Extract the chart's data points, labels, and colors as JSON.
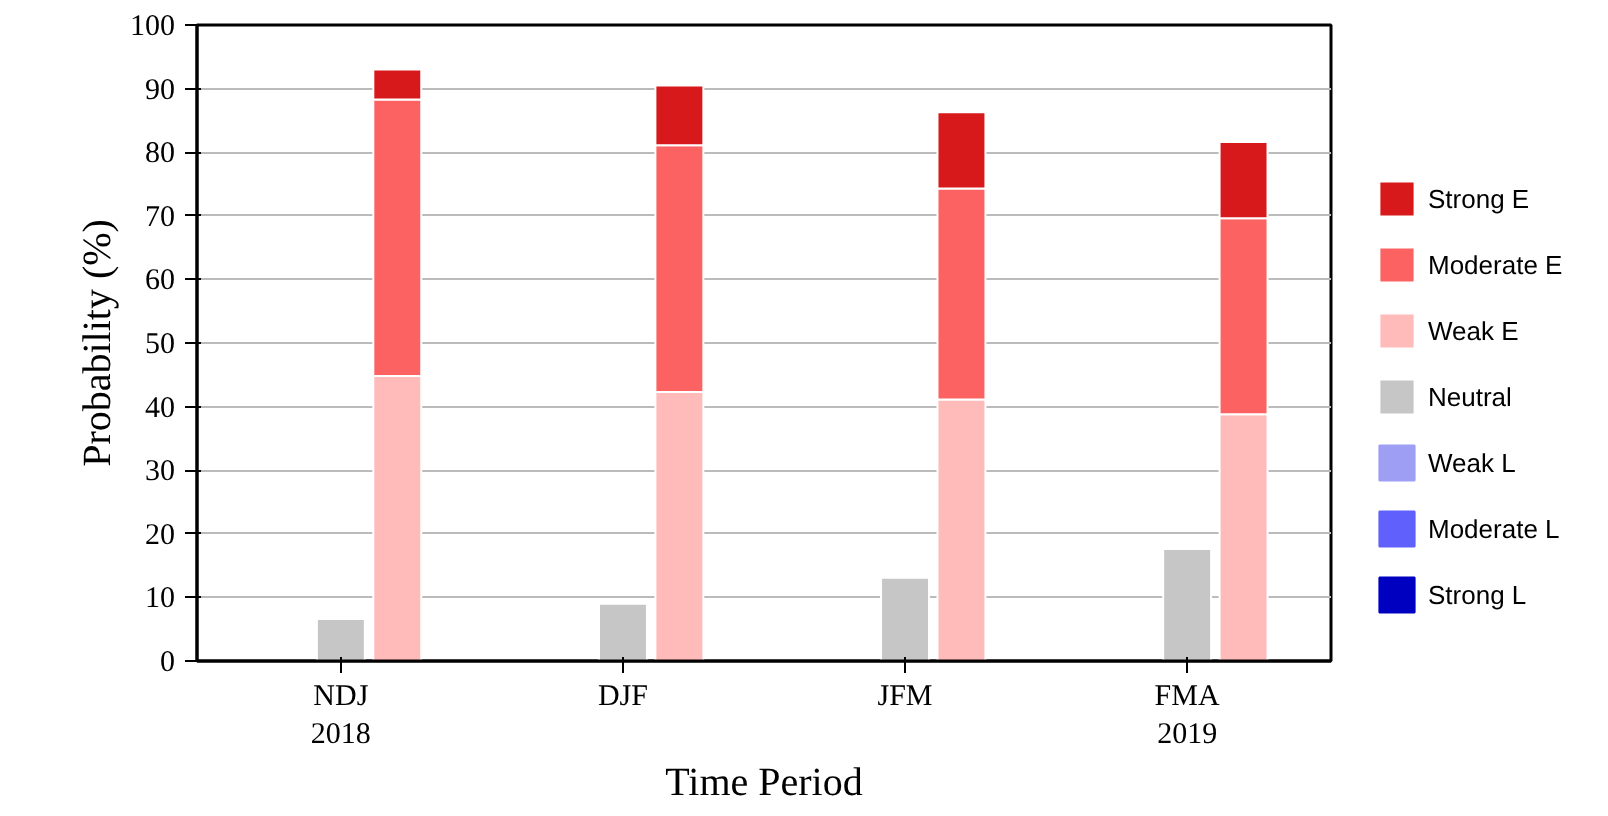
{
  "chart_data": {
    "type": "bar",
    "stacked": true,
    "xlabel": "Time Period",
    "ylabel": "Probability (%)",
    "categories": [
      null,
      "NDJ\n2018",
      null,
      null,
      "DJF",
      null,
      null,
      "JFM",
      null,
      null,
      "FMA\n2019",
      null
    ],
    "ylim": [
      0,
      100
    ],
    "yticks": [
      0,
      10,
      20,
      30,
      40,
      50,
      60,
      70,
      80,
      90,
      100
    ],
    "grid": "y",
    "legend": "right",
    "series": [
      {
        "name": "Strong L",
        "color": "#0000c0",
        "values": [
          0,
          null,
          null,
          0,
          null,
          null,
          0,
          null,
          null,
          0,
          null,
          null
        ]
      },
      {
        "name": "Moderate L",
        "color": "#6060fc",
        "values": [
          0,
          null,
          null,
          0,
          null,
          null,
          0,
          null,
          null,
          0,
          null,
          null
        ]
      },
      {
        "name": "Weak L",
        "color": "#9e9ef5",
        "values": [
          0,
          null,
          null,
          0,
          null,
          null,
          0,
          null,
          null,
          0,
          null,
          null
        ]
      },
      {
        "name": "Neutral",
        "color": "#c6c6c6",
        "values": [
          null,
          6.6,
          null,
          null,
          9.0,
          null,
          null,
          13.1,
          null,
          null,
          17.6,
          null
        ]
      },
      {
        "name": "Weak E",
        "color": "#ffbaba",
        "values": [
          null,
          null,
          44.8,
          null,
          null,
          42.3,
          null,
          null,
          41.1,
          null,
          null,
          38.8
        ]
      },
      {
        "name": "Moderate E",
        "color": "#fc6262",
        "values": [
          null,
          null,
          43.5,
          null,
          null,
          38.8,
          null,
          null,
          33.2,
          null,
          null,
          30.8
        ]
      },
      {
        "name": "Strong E",
        "color": "#d7191c",
        "values": [
          null,
          null,
          4.7,
          null,
          null,
          9.4,
          null,
          null,
          12.0,
          null,
          null,
          12.0
        ]
      }
    ]
  }
}
